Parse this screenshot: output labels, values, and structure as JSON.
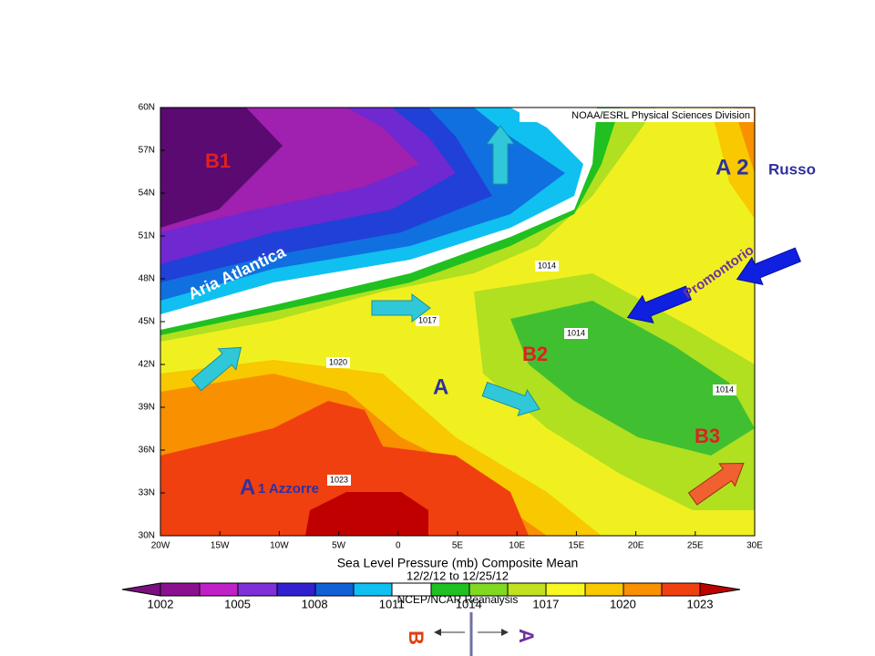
{
  "map": {
    "credit": "NOAA/ESRL Physical Sciences Division",
    "lat_ticks": [
      "60N",
      "57N",
      "54N",
      "51N",
      "48N",
      "45N",
      "42N",
      "39N",
      "36N",
      "33N",
      "30N"
    ],
    "lon_ticks": [
      "20W",
      "15W",
      "10W",
      "5W",
      "0",
      "5E",
      "10E",
      "15E",
      "20E",
      "25E",
      "30E"
    ],
    "contour_labels": [
      "1014",
      "1017",
      "1020",
      "1014",
      "1014",
      "1023"
    ],
    "annotations": {
      "b1": "B1",
      "a2": "A 2",
      "russo": "Russo",
      "aria": "Aria Atlantica",
      "promontorio": "Promontorio",
      "b2": "B2",
      "a": "A",
      "b3": "B3",
      "a1_letter": "A",
      "a1_rest": "1 Azzorre"
    },
    "title": "Sea Level Pressure (mb) Composite Mean",
    "dates": "12/2/12  to 12/25/12",
    "source": "NCEP/NCAR Reanalysis",
    "colorbar_labels": [
      "1002",
      "1005",
      "1008",
      "1011",
      "1014",
      "1017",
      "1020",
      "1023"
    ],
    "footer": {
      "left": "B",
      "right": "A"
    }
  }
}
